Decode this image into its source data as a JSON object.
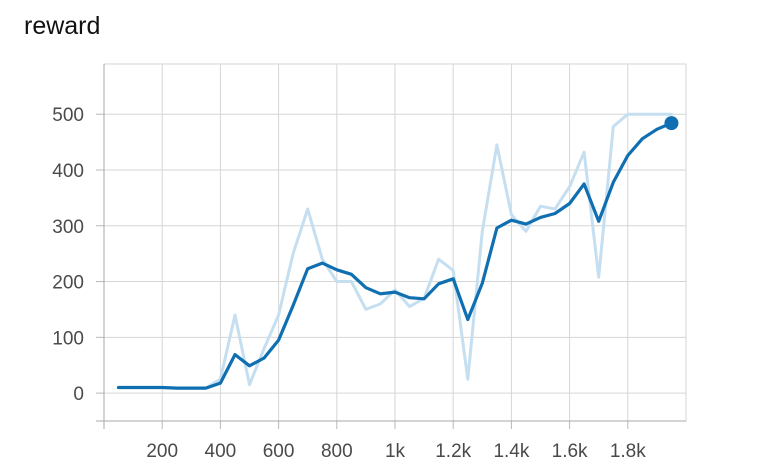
{
  "chart_data": {
    "type": "line",
    "title": "reward",
    "xlabel": "",
    "ylabel": "",
    "xlim": [
      0,
      2000
    ],
    "ylim": [
      -50,
      590
    ],
    "x_ticks": [
      {
        "value": 200,
        "label": "200"
      },
      {
        "value": 400,
        "label": "400"
      },
      {
        "value": 600,
        "label": "600"
      },
      {
        "value": 800,
        "label": "800"
      },
      {
        "value": 1000,
        "label": "1k"
      },
      {
        "value": 1200,
        "label": "1.2k"
      },
      {
        "value": 1400,
        "label": "1.4k"
      },
      {
        "value": 1600,
        "label": "1.6k"
      },
      {
        "value": 1800,
        "label": "1.8k"
      }
    ],
    "y_ticks": [
      {
        "value": 0,
        "label": "0"
      },
      {
        "value": 100,
        "label": "100"
      },
      {
        "value": 200,
        "label": "200"
      },
      {
        "value": 300,
        "label": "300"
      },
      {
        "value": 400,
        "label": "400"
      },
      {
        "value": 500,
        "label": "500"
      }
    ],
    "grid": true,
    "series": [
      {
        "role": "raw",
        "color": "#c5dff0",
        "x": [
          50,
          100,
          150,
          200,
          250,
          300,
          350,
          400,
          450,
          500,
          550,
          600,
          650,
          700,
          750,
          800,
          850,
          900,
          950,
          1000,
          1050,
          1100,
          1150,
          1200,
          1250,
          1300,
          1350,
          1400,
          1450,
          1500,
          1550,
          1600,
          1650,
          1700,
          1750,
          1800,
          1850,
          1900,
          1950
        ],
        "y": [
          10,
          10,
          10,
          10,
          9,
          9,
          9,
          25,
          140,
          15,
          80,
          140,
          250,
          330,
          240,
          200,
          200,
          150,
          160,
          185,
          155,
          170,
          240,
          220,
          25,
          290,
          445,
          320,
          290,
          335,
          330,
          370,
          432,
          208,
          478,
          500,
          500,
          500,
          500
        ]
      },
      {
        "role": "smoothed",
        "color": "#0f6fb0",
        "x": [
          50,
          100,
          150,
          200,
          250,
          300,
          350,
          400,
          450,
          500,
          550,
          600,
          650,
          700,
          750,
          800,
          850,
          900,
          950,
          1000,
          1050,
          1100,
          1150,
          1200,
          1250,
          1300,
          1350,
          1400,
          1450,
          1500,
          1550,
          1600,
          1650,
          1700,
          1750,
          1800,
          1850,
          1900,
          1950
        ],
        "y": [
          10,
          10,
          10,
          10,
          9,
          9,
          9,
          18,
          69,
          49,
          63,
          95,
          157,
          223,
          233,
          221,
          213,
          189,
          178,
          181,
          171,
          169,
          196,
          205,
          132,
          197,
          296,
          310,
          303,
          315,
          322,
          340,
          375,
          308,
          378,
          426,
          456,
          473,
          484
        ]
      }
    ]
  }
}
